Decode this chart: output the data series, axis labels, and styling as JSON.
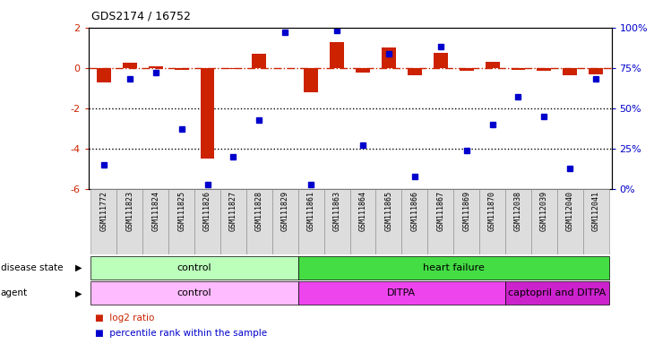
{
  "title": "GDS2174 / 16752",
  "samples": [
    "GSM111772",
    "GSM111823",
    "GSM111824",
    "GSM111825",
    "GSM111826",
    "GSM111827",
    "GSM111828",
    "GSM111829",
    "GSM111861",
    "GSM111863",
    "GSM111864",
    "GSM111865",
    "GSM111866",
    "GSM111867",
    "GSM111869",
    "GSM111870",
    "GSM112038",
    "GSM112039",
    "GSM112040",
    "GSM112041"
  ],
  "log2_ratio": [
    -0.7,
    0.25,
    0.1,
    -0.1,
    -4.5,
    -0.05,
    0.7,
    0.0,
    -1.2,
    1.3,
    -0.25,
    1.0,
    -0.35,
    0.75,
    -0.15,
    0.3,
    -0.1,
    -0.15,
    -0.35,
    -0.3
  ],
  "percentile": [
    15,
    68,
    72,
    37,
    3,
    20,
    43,
    97,
    3,
    98,
    27,
    84,
    8,
    88,
    24,
    40,
    57,
    45,
    13,
    68
  ],
  "ylim_left": [
    -6,
    2
  ],
  "ylim_right": [
    0,
    100
  ],
  "right_ticks": [
    0,
    25,
    50,
    75,
    100
  ],
  "right_tick_labels": [
    "0%",
    "25%",
    "50%",
    "75%",
    "100%"
  ],
  "left_ticks": [
    -6,
    -4,
    -2,
    0,
    2
  ],
  "left_tick_labels": [
    "-6",
    "-4",
    "-2",
    "0",
    "2"
  ],
  "bar_color": "#cc2200",
  "dot_color": "#0000cc",
  "hline_color": "#cc2200",
  "dotted_line_color": "#000000",
  "disease_state_groups": [
    {
      "label": "control",
      "start": 0,
      "end": 8,
      "color": "#bbffbb"
    },
    {
      "label": "heart failure",
      "start": 8,
      "end": 20,
      "color": "#44dd44"
    }
  ],
  "agent_groups": [
    {
      "label": "control",
      "start": 0,
      "end": 8,
      "color": "#ffbbff"
    },
    {
      "label": "DITPA",
      "start": 8,
      "end": 16,
      "color": "#ee44ee"
    },
    {
      "label": "captopril and DITPA",
      "start": 16,
      "end": 20,
      "color": "#cc22cc"
    }
  ],
  "legend_items": [
    {
      "label": "log2 ratio",
      "color": "#cc2200"
    },
    {
      "label": "percentile rank within the sample",
      "color": "#0000cc"
    }
  ]
}
